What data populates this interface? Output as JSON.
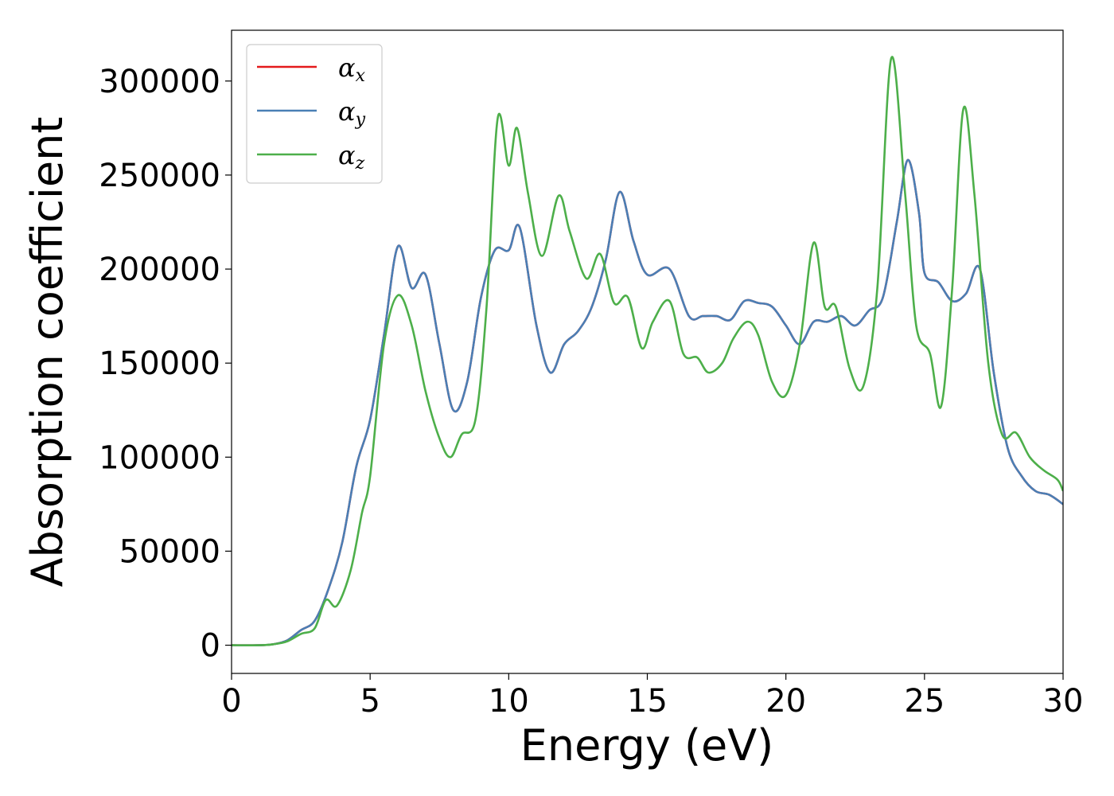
{
  "chart_data": {
    "type": "line",
    "title": "",
    "xlabel": "Energy (eV)",
    "ylabel": "Absorption coefficient",
    "xlim": [
      0,
      30
    ],
    "ylim": [
      -15000,
      327000
    ],
    "xticks": [
      0,
      5,
      10,
      15,
      20,
      25,
      30
    ],
    "yticks": [
      0,
      50000,
      100000,
      150000,
      200000,
      250000,
      300000
    ],
    "grid": false,
    "legend_position": "top-left",
    "series": [
      {
        "name": "α",
        "sub": "x",
        "color": "#e41a1c",
        "points": [
          [
            0,
            0
          ],
          [
            1,
            0
          ],
          [
            1.5,
            500
          ],
          [
            2,
            2500
          ],
          [
            2.5,
            8000
          ],
          [
            3,
            13000
          ],
          [
            3.5,
            30000
          ],
          [
            4,
            55000
          ],
          [
            4.5,
            95000
          ],
          [
            5,
            120000
          ],
          [
            5.5,
            165000
          ],
          [
            6,
            212000
          ],
          [
            6.5,
            190000
          ],
          [
            7,
            197000
          ],
          [
            7.5,
            160000
          ],
          [
            8,
            125000
          ],
          [
            8.5,
            140000
          ],
          [
            9,
            185000
          ],
          [
            9.5,
            210000
          ],
          [
            10,
            210000
          ],
          [
            10.4,
            222000
          ],
          [
            11,
            170000
          ],
          [
            11.5,
            145000
          ],
          [
            12,
            160000
          ],
          [
            12.5,
            167000
          ],
          [
            13,
            180000
          ],
          [
            13.5,
            205000
          ],
          [
            14,
            241000
          ],
          [
            14.5,
            215000
          ],
          [
            15,
            197000
          ],
          [
            15.8,
            200000
          ],
          [
            16.5,
            175000
          ],
          [
            17,
            175000
          ],
          [
            17.5,
            175000
          ],
          [
            18,
            173000
          ],
          [
            18.5,
            183000
          ],
          [
            19,
            182000
          ],
          [
            19.5,
            180000
          ],
          [
            20,
            170000
          ],
          [
            20.5,
            160000
          ],
          [
            21,
            172000
          ],
          [
            21.5,
            172000
          ],
          [
            22,
            175000
          ],
          [
            22.5,
            170000
          ],
          [
            23,
            178000
          ],
          [
            23.5,
            185000
          ],
          [
            24,
            225000
          ],
          [
            24.4,
            258000
          ],
          [
            24.8,
            230000
          ],
          [
            25,
            198000
          ],
          [
            25.5,
            193000
          ],
          [
            26,
            183000
          ],
          [
            26.5,
            187000
          ],
          [
            27,
            200000
          ],
          [
            27.5,
            145000
          ],
          [
            28,
            105000
          ],
          [
            28.5,
            90000
          ],
          [
            29,
            82000
          ],
          [
            29.5,
            80000
          ],
          [
            30,
            75000
          ]
        ]
      },
      {
        "name": "α",
        "sub": "y",
        "color": "#4a7fb5",
        "points": [
          [
            0,
            0
          ],
          [
            1,
            0
          ],
          [
            1.5,
            500
          ],
          [
            2,
            2500
          ],
          [
            2.5,
            8000
          ],
          [
            3,
            13000
          ],
          [
            3.5,
            30000
          ],
          [
            4,
            55000
          ],
          [
            4.5,
            95000
          ],
          [
            5,
            120000
          ],
          [
            5.5,
            165000
          ],
          [
            6,
            212000
          ],
          [
            6.5,
            190000
          ],
          [
            7,
            197000
          ],
          [
            7.5,
            160000
          ],
          [
            8,
            125000
          ],
          [
            8.5,
            140000
          ],
          [
            9,
            185000
          ],
          [
            9.5,
            210000
          ],
          [
            10,
            210000
          ],
          [
            10.4,
            222000
          ],
          [
            11,
            170000
          ],
          [
            11.5,
            145000
          ],
          [
            12,
            160000
          ],
          [
            12.5,
            167000
          ],
          [
            13,
            180000
          ],
          [
            13.5,
            205000
          ],
          [
            14,
            241000
          ],
          [
            14.5,
            215000
          ],
          [
            15,
            197000
          ],
          [
            15.8,
            200000
          ],
          [
            16.5,
            175000
          ],
          [
            17,
            175000
          ],
          [
            17.5,
            175000
          ],
          [
            18,
            173000
          ],
          [
            18.5,
            183000
          ],
          [
            19,
            182000
          ],
          [
            19.5,
            180000
          ],
          [
            20,
            170000
          ],
          [
            20.5,
            160000
          ],
          [
            21,
            172000
          ],
          [
            21.5,
            172000
          ],
          [
            22,
            175000
          ],
          [
            22.5,
            170000
          ],
          [
            23,
            178000
          ],
          [
            23.5,
            185000
          ],
          [
            24,
            225000
          ],
          [
            24.4,
            258000
          ],
          [
            24.8,
            230000
          ],
          [
            25,
            198000
          ],
          [
            25.5,
            193000
          ],
          [
            26,
            183000
          ],
          [
            26.5,
            187000
          ],
          [
            27,
            200000
          ],
          [
            27.5,
            145000
          ],
          [
            28,
            105000
          ],
          [
            28.5,
            90000
          ],
          [
            29,
            82000
          ],
          [
            29.5,
            80000
          ],
          [
            30,
            75000
          ]
        ]
      },
      {
        "name": "α",
        "sub": "z",
        "color": "#4daf4a",
        "points": [
          [
            0,
            0
          ],
          [
            1,
            0
          ],
          [
            1.5,
            500
          ],
          [
            2,
            2000
          ],
          [
            2.5,
            6000
          ],
          [
            3,
            9000
          ],
          [
            3.4,
            24000
          ],
          [
            3.8,
            21000
          ],
          [
            4.3,
            40000
          ],
          [
            4.7,
            70000
          ],
          [
            5,
            90000
          ],
          [
            5.5,
            160000
          ],
          [
            6,
            186000
          ],
          [
            6.5,
            170000
          ],
          [
            7,
            135000
          ],
          [
            7.5,
            110000
          ],
          [
            7.9,
            100000
          ],
          [
            8.3,
            112000
          ],
          [
            8.8,
            120000
          ],
          [
            9.2,
            180000
          ],
          [
            9.6,
            280000
          ],
          [
            10,
            255000
          ],
          [
            10.3,
            275000
          ],
          [
            10.7,
            240000
          ],
          [
            11.2,
            207000
          ],
          [
            11.8,
            239000
          ],
          [
            12.2,
            220000
          ],
          [
            12.8,
            195000
          ],
          [
            13.3,
            208000
          ],
          [
            13.8,
            182000
          ],
          [
            14.3,
            185000
          ],
          [
            14.8,
            158000
          ],
          [
            15.2,
            172000
          ],
          [
            15.8,
            183000
          ],
          [
            16.3,
            155000
          ],
          [
            16.8,
            153000
          ],
          [
            17.2,
            145000
          ],
          [
            17.7,
            150000
          ],
          [
            18.1,
            163000
          ],
          [
            18.6,
            172000
          ],
          [
            19,
            165000
          ],
          [
            19.5,
            140000
          ],
          [
            20,
            133000
          ],
          [
            20.5,
            160000
          ],
          [
            21,
            214000
          ],
          [
            21.4,
            180000
          ],
          [
            21.8,
            180000
          ],
          [
            22.3,
            147000
          ],
          [
            22.8,
            138000
          ],
          [
            23.3,
            190000
          ],
          [
            23.8,
            312000
          ],
          [
            24.3,
            240000
          ],
          [
            24.7,
            170000
          ],
          [
            25.2,
            155000
          ],
          [
            25.6,
            127000
          ],
          [
            26,
            190000
          ],
          [
            26.4,
            285000
          ],
          [
            26.8,
            240000
          ],
          [
            27.3,
            150000
          ],
          [
            27.8,
            112000
          ],
          [
            28.3,
            113000
          ],
          [
            28.8,
            100000
          ],
          [
            29.3,
            93000
          ],
          [
            29.8,
            88000
          ],
          [
            30,
            82000
          ]
        ]
      }
    ]
  }
}
